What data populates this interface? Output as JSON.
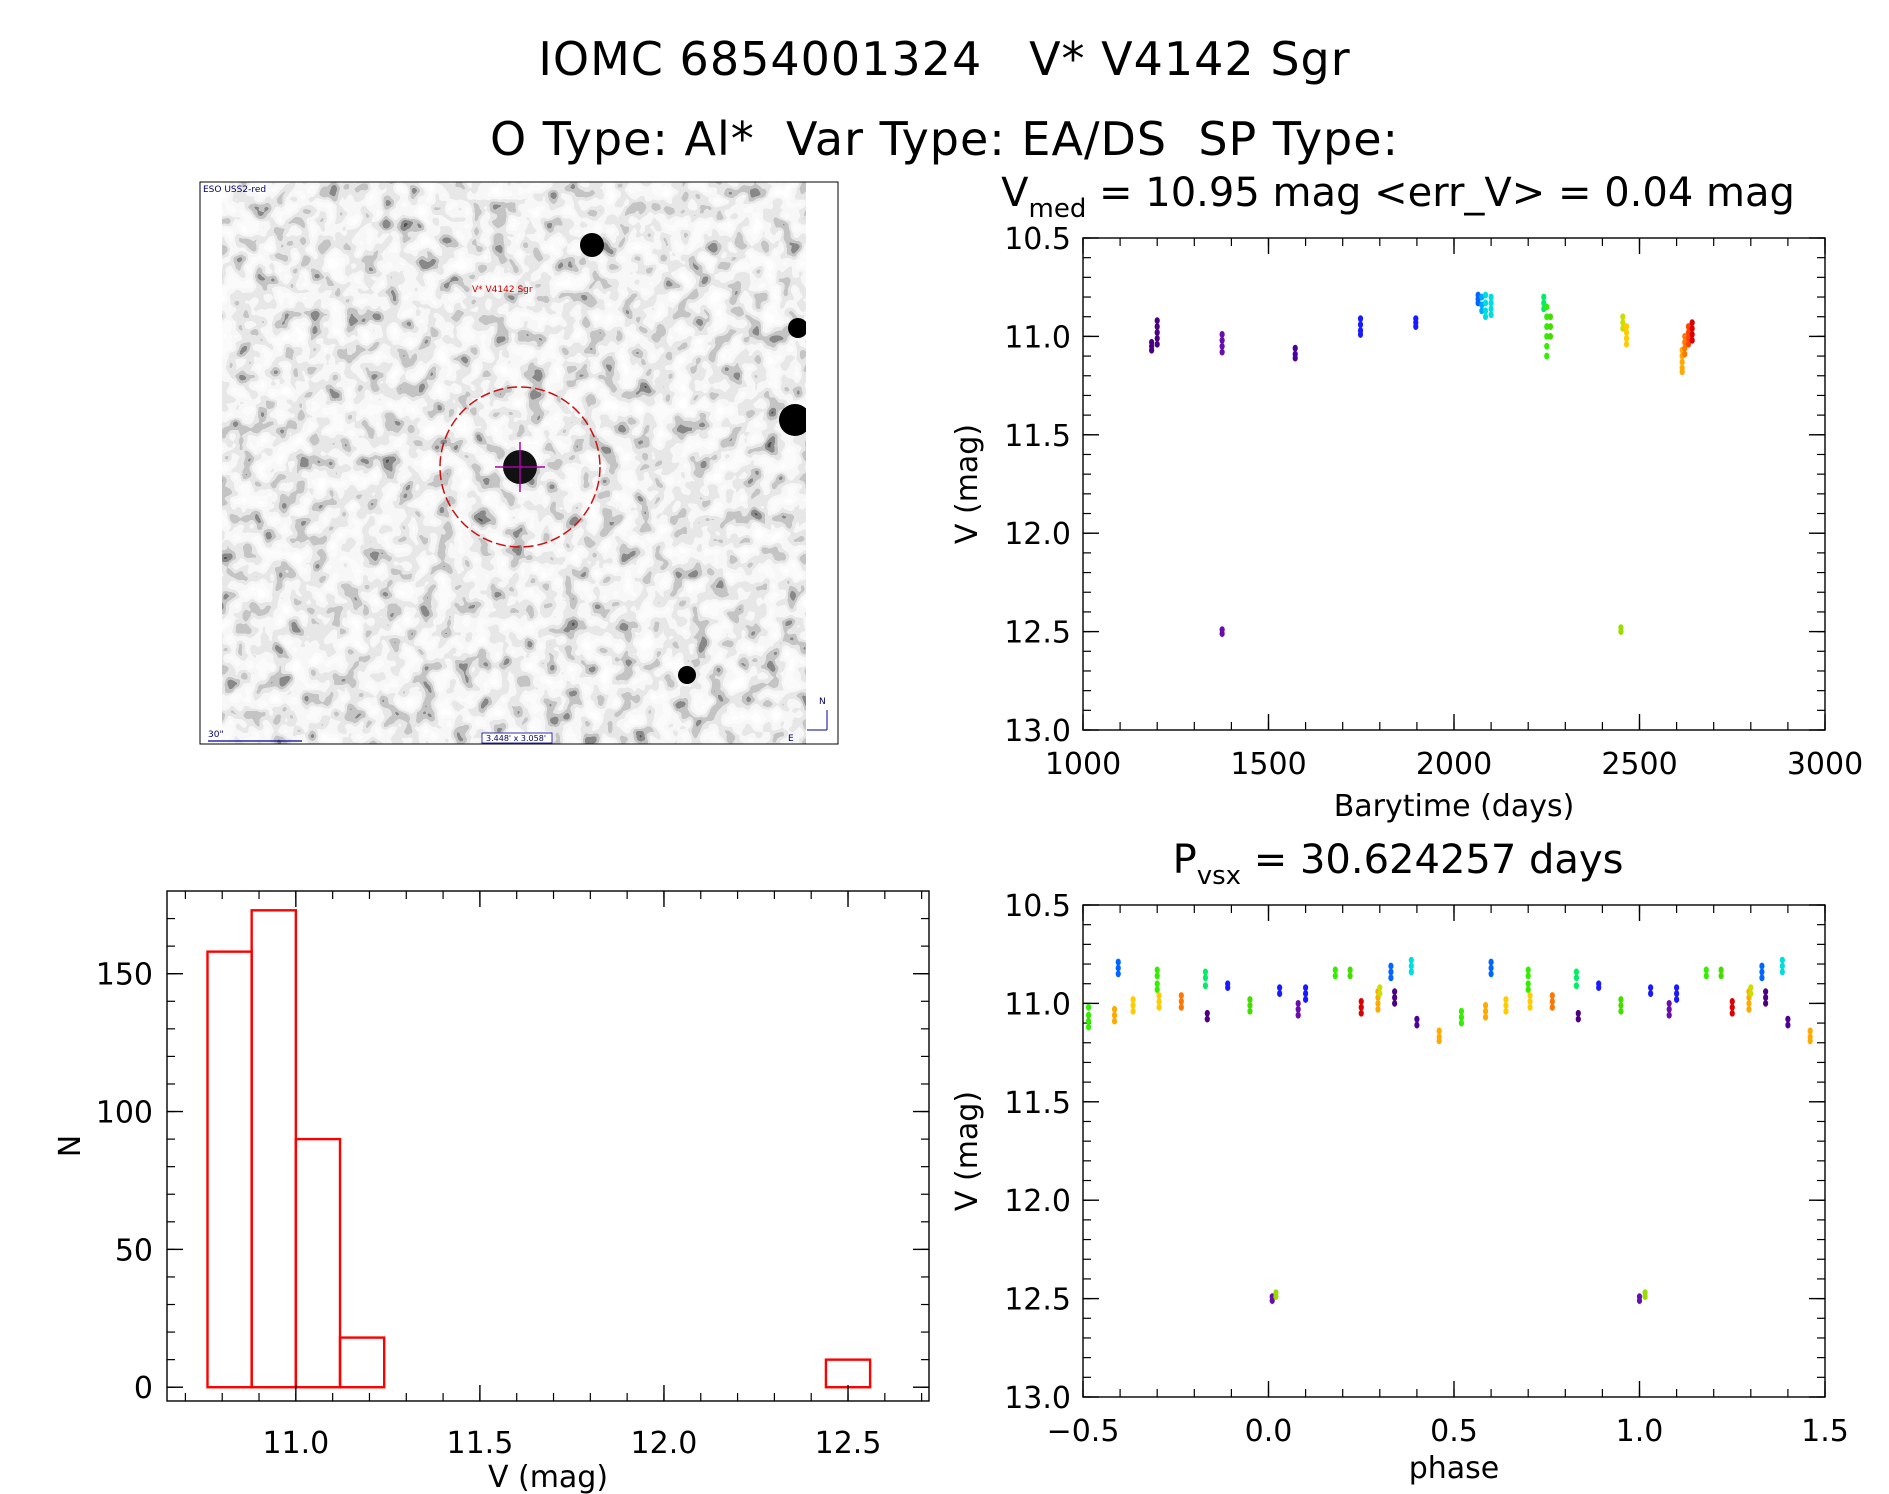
{
  "header": {
    "line1": "IOMC 6854001324   V* V4142 Sgr",
    "line2": "O Type: Al*  Var Type: EA/DS  SP Type:"
  },
  "thumbnail": {
    "survey_label": "ESO USS2-red",
    "object_label": "V* V4142 Sgr",
    "scale_label": "30\"",
    "fov_label": "3.448' x 3.058'",
    "compass_n": "N",
    "compass_e": "E"
  },
  "colors": {
    "histogram": "#ff0000",
    "axis": "#000000"
  },
  "chart_data": [
    {
      "id": "light_curve",
      "type": "scatter",
      "title_main": "V",
      "title_sub": "med",
      "title_rest": " = 10.95 mag <err_V> = 0.04 mag",
      "xlabel": "Barytime (days)",
      "ylabel": "V (mag)",
      "xlim": [
        1000,
        3000
      ],
      "ylim": [
        10.5,
        13.0
      ],
      "y_inverted": true,
      "x_ticks": [
        "1000",
        "1500",
        "2000",
        "2500",
        "3000"
      ],
      "y_ticks": [
        "10.5",
        "11.0",
        "11.5",
        "12.0",
        "12.5",
        "13.0"
      ],
      "groups": [
        {
          "x": 1185,
          "y": [
            11.03,
            11.05,
            11.07
          ],
          "color": "#4b0082"
        },
        {
          "x": 1200,
          "y": [
            10.92,
            10.95,
            10.98,
            11.01,
            11.04
          ],
          "color": "#4b0082"
        },
        {
          "x": 1375,
          "y": [
            10.99,
            11.02,
            11.05,
            11.08
          ],
          "color": "#6a0dad"
        },
        {
          "x": 1375,
          "y": [
            12.49,
            12.51
          ],
          "color": "#6a0dad"
        },
        {
          "x": 1572,
          "y": [
            11.06,
            11.09,
            11.11
          ],
          "color": "#4b0099"
        },
        {
          "x": 1748,
          "y": [
            10.91,
            10.94,
            10.97,
            10.99
          ],
          "color": "#1a1aff"
        },
        {
          "x": 1897,
          "y": [
            10.91,
            10.93,
            10.95
          ],
          "color": "#1a1aff"
        },
        {
          "x": 2065,
          "y": [
            10.79,
            10.81,
            10.83
          ],
          "color": "#0066ff"
        },
        {
          "x": 2075,
          "y": [
            10.8,
            10.84,
            10.87
          ],
          "color": "#00aaff"
        },
        {
          "x": 2085,
          "y": [
            10.79,
            10.83,
            10.87,
            10.9
          ],
          "color": "#00dddd"
        },
        {
          "x": 2100,
          "y": [
            10.8,
            10.83,
            10.86,
            10.89
          ],
          "color": "#00dddd"
        },
        {
          "x": 2242,
          "y": [
            10.8,
            10.83,
            10.86
          ],
          "color": "#00ee66"
        },
        {
          "x": 2250,
          "y": [
            10.85,
            10.9,
            10.95,
            11.0,
            11.05,
            11.1
          ],
          "color": "#33ee00"
        },
        {
          "x": 2260,
          "y": [
            10.9,
            10.95,
            11.0
          ],
          "color": "#44dd00"
        },
        {
          "x": 2450,
          "y": [
            12.48,
            12.5
          ],
          "color": "#99dd00"
        },
        {
          "x": 2455,
          "y": [
            10.9,
            10.93,
            10.96
          ],
          "color": "#ccdd00"
        },
        {
          "x": 2465,
          "y": [
            10.95,
            10.98,
            11.01,
            11.04
          ],
          "color": "#ffcc00"
        },
        {
          "x": 2615,
          "y": [
            11.07,
            11.1,
            11.13,
            11.16,
            11.18
          ],
          "color": "#ffaa00"
        },
        {
          "x": 2622,
          "y": [
            11.0,
            11.03,
            11.06,
            11.09
          ],
          "color": "#ff7700"
        },
        {
          "x": 2632,
          "y": [
            10.95,
            10.98,
            11.01,
            11.04
          ],
          "color": "#ff4400"
        },
        {
          "x": 2642,
          "y": [
            10.93,
            10.96,
            10.99,
            11.02
          ],
          "color": "#dd0000"
        }
      ]
    },
    {
      "id": "phase_curve",
      "type": "scatter",
      "title_main": "P",
      "title_sub": "vsx",
      "title_rest": " = 30.624257 days",
      "xlabel": "phase",
      "ylabel": "V (mag)",
      "xlim": [
        -0.5,
        1.5
      ],
      "ylim": [
        10.5,
        13.0
      ],
      "y_inverted": true,
      "x_ticks": [
        "−0.5",
        "0.0",
        "0.5",
        "1.0",
        "1.5"
      ],
      "y_ticks": [
        "10.5",
        "11.0",
        "11.5",
        "12.0",
        "12.5",
        "13.0"
      ],
      "groups": [
        {
          "x": -0.485,
          "y": [
            11.02,
            11.06,
            11.09,
            11.12
          ],
          "color": "#33ee00"
        },
        {
          "x": -0.415,
          "y": [
            11.03,
            11.06,
            11.09
          ],
          "color": "#ffaa00"
        },
        {
          "x": -0.405,
          "y": [
            10.79,
            10.82,
            10.85
          ],
          "color": "#0066ff"
        },
        {
          "x": -0.365,
          "y": [
            10.98,
            11.01,
            11.04
          ],
          "color": "#ffcc00"
        },
        {
          "x": -0.3,
          "y": [
            10.83,
            10.86,
            10.9,
            10.93
          ],
          "color": "#33ee00"
        },
        {
          "x": -0.295,
          "y": [
            10.96,
            10.99,
            11.02
          ],
          "color": "#ffcc00"
        },
        {
          "x": -0.235,
          "y": [
            10.96,
            10.99,
            11.02
          ],
          "color": "#ff7700"
        },
        {
          "x": -0.17,
          "y": [
            10.84,
            10.87,
            10.91
          ],
          "color": "#00ee66"
        },
        {
          "x": -0.165,
          "y": [
            11.05,
            11.08
          ],
          "color": "#4b0082"
        },
        {
          "x": -0.11,
          "y": [
            10.9,
            10.92
          ],
          "color": "#1a1aff"
        },
        {
          "x": -0.05,
          "y": [
            10.98,
            11.01,
            11.04
          ],
          "color": "#44dd00"
        },
        {
          "x": 0.01,
          "y": [
            12.49,
            12.51
          ],
          "color": "#6a0dad"
        },
        {
          "x": 0.02,
          "y": [
            12.47,
            12.49
          ],
          "color": "#99dd00"
        },
        {
          "x": 0.03,
          "y": [
            10.92,
            10.95
          ],
          "color": "#1a1aff"
        },
        {
          "x": 0.08,
          "y": [
            11.0,
            11.03,
            11.06
          ],
          "color": "#6a0dad"
        },
        {
          "x": 0.1,
          "y": [
            10.92,
            10.95,
            10.98
          ],
          "color": "#1a1aff"
        },
        {
          "x": 0.18,
          "y": [
            10.83,
            10.86
          ],
          "color": "#33ee00"
        },
        {
          "x": 0.22,
          "y": [
            10.83,
            10.86
          ],
          "color": "#44dd00"
        },
        {
          "x": 0.25,
          "y": [
            10.99,
            11.02,
            11.05
          ],
          "color": "#dd0000"
        },
        {
          "x": 0.295,
          "y": [
            10.94,
            10.97,
            11.0,
            11.03
          ],
          "color": "#ffaa00"
        },
        {
          "x": 0.3,
          "y": [
            10.92,
            10.95
          ],
          "color": "#ccdd00"
        },
        {
          "x": 0.33,
          "y": [
            10.81,
            10.84,
            10.87
          ],
          "color": "#0066ff"
        },
        {
          "x": 0.34,
          "y": [
            10.94,
            10.97,
            11.0
          ],
          "color": "#4b0082"
        },
        {
          "x": 0.385,
          "y": [
            10.78,
            10.81,
            10.84
          ],
          "color": "#00dddd"
        },
        {
          "x": 0.4,
          "y": [
            11.08,
            11.11
          ],
          "color": "#4b0099"
        },
        {
          "x": 0.46,
          "y": [
            11.14,
            11.17,
            11.19
          ],
          "color": "#ffaa00"
        },
        {
          "x": 0.52,
          "y": [
            11.04,
            11.07,
            11.1
          ],
          "color": "#33ee00"
        },
        {
          "x": 0.585,
          "y": [
            11.01,
            11.04,
            11.07
          ],
          "color": "#ffaa00"
        },
        {
          "x": 0.6,
          "y": [
            10.79,
            10.82,
            10.85
          ],
          "color": "#0066ff"
        },
        {
          "x": 0.64,
          "y": [
            10.98,
            11.01,
            11.04
          ],
          "color": "#ffcc00"
        },
        {
          "x": 0.7,
          "y": [
            10.83,
            10.86,
            10.9,
            10.93
          ],
          "color": "#33ee00"
        },
        {
          "x": 0.705,
          "y": [
            10.96,
            10.99,
            11.02
          ],
          "color": "#ffcc00"
        },
        {
          "x": 0.765,
          "y": [
            10.96,
            10.99,
            11.02
          ],
          "color": "#ff7700"
        },
        {
          "x": 0.83,
          "y": [
            10.84,
            10.87,
            10.91
          ],
          "color": "#00ee66"
        },
        {
          "x": 0.835,
          "y": [
            11.05,
            11.08
          ],
          "color": "#4b0082"
        },
        {
          "x": 0.89,
          "y": [
            10.9,
            10.92
          ],
          "color": "#1a1aff"
        },
        {
          "x": 0.95,
          "y": [
            10.98,
            11.01,
            11.04
          ],
          "color": "#44dd00"
        },
        {
          "x": 1.0,
          "y": [
            12.49,
            12.51
          ],
          "color": "#6a0dad"
        },
        {
          "x": 1.015,
          "y": [
            12.47,
            12.49
          ],
          "color": "#99dd00"
        },
        {
          "x": 1.03,
          "y": [
            10.92,
            10.95
          ],
          "color": "#1a1aff"
        },
        {
          "x": 1.08,
          "y": [
            11.0,
            11.03,
            11.06
          ],
          "color": "#6a0dad"
        },
        {
          "x": 1.1,
          "y": [
            10.92,
            10.95,
            10.98
          ],
          "color": "#1a1aff"
        },
        {
          "x": 1.18,
          "y": [
            10.83,
            10.86
          ],
          "color": "#33ee00"
        },
        {
          "x": 1.22,
          "y": [
            10.83,
            10.86
          ],
          "color": "#44dd00"
        },
        {
          "x": 1.25,
          "y": [
            10.99,
            11.02,
            11.05
          ],
          "color": "#dd0000"
        },
        {
          "x": 1.295,
          "y": [
            10.94,
            10.97,
            11.0,
            11.03
          ],
          "color": "#ffaa00"
        },
        {
          "x": 1.3,
          "y": [
            10.92,
            10.95
          ],
          "color": "#ccdd00"
        },
        {
          "x": 1.33,
          "y": [
            10.81,
            10.84,
            10.87
          ],
          "color": "#0066ff"
        },
        {
          "x": 1.34,
          "y": [
            10.94,
            10.97,
            11.0
          ],
          "color": "#4b0082"
        },
        {
          "x": 1.385,
          "y": [
            10.78,
            10.81,
            10.84
          ],
          "color": "#00dddd"
        },
        {
          "x": 1.4,
          "y": [
            11.08,
            11.11
          ],
          "color": "#4b0099"
        },
        {
          "x": 1.46,
          "y": [
            11.14,
            11.17,
            11.19
          ],
          "color": "#ffaa00"
        }
      ]
    },
    {
      "id": "histogram",
      "type": "bar",
      "xlabel": "V (mag)",
      "ylabel": "N",
      "xlim": [
        10.65,
        12.72
      ],
      "ylim": [
        -5,
        180
      ],
      "x_ticks": [
        "11.0",
        "11.5",
        "12.0",
        "12.5"
      ],
      "y_ticks": [
        "0",
        "50",
        "100",
        "150"
      ],
      "bins": [
        {
          "x0": 10.76,
          "x1": 10.88,
          "value": 158
        },
        {
          "x0": 10.88,
          "x1": 11.0,
          "value": 173
        },
        {
          "x0": 11.0,
          "x1": 11.12,
          "value": 90
        },
        {
          "x0": 11.12,
          "x1": 11.24,
          "value": 18
        },
        {
          "x0": 12.44,
          "x1": 12.56,
          "value": 10
        }
      ]
    }
  ]
}
